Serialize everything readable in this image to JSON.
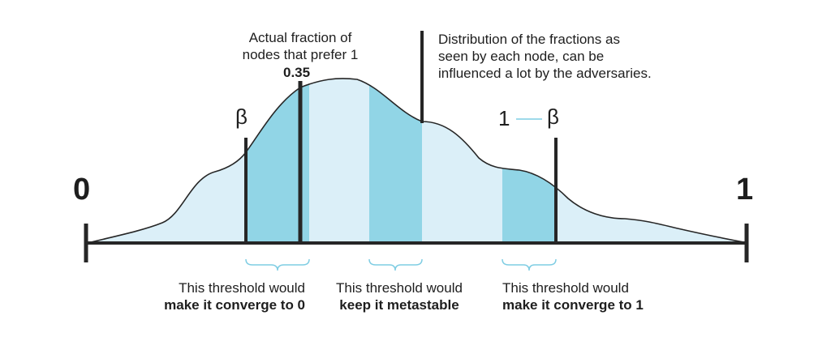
{
  "axis": {
    "start_label": "0",
    "end_label": "1"
  },
  "markers": {
    "beta": "β",
    "one_minus_beta": {
      "one": "1",
      "beta": "β"
    },
    "actual_fraction": {
      "line1": "Actual fraction of",
      "line2": "nodes that prefer 1",
      "value": "0.35"
    }
  },
  "distribution_note": {
    "line1": "Distribution of the fractions as",
    "line2": "seen by each node, can be",
    "line3": "influenced a lot by the adversaries."
  },
  "thresholds": [
    {
      "line1": "This threshold would",
      "line2": "make it converge to 0"
    },
    {
      "line1": "This threshold would",
      "line2": "keep it metastable"
    },
    {
      "line1": "This threshold would",
      "line2": "make it converge to 1"
    }
  ],
  "colors": {
    "curve_fill": "#dbeff8",
    "band_fill": "#91d5e6",
    "brace": "#7fcde3",
    "line": "#262626"
  }
}
